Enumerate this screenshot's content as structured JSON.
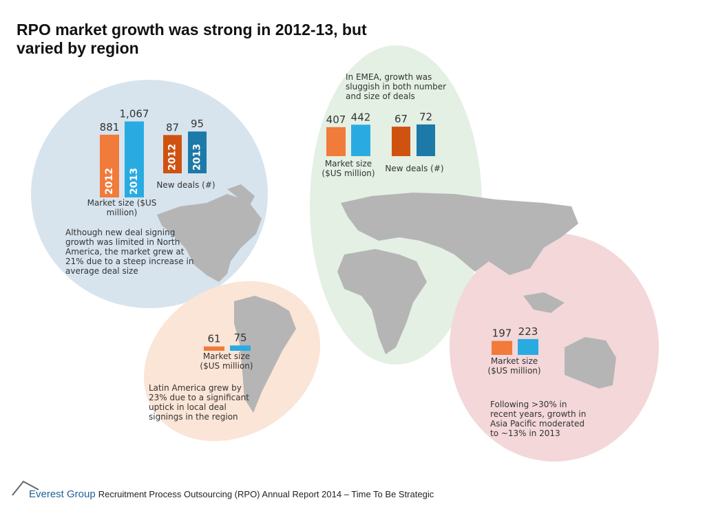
{
  "title": "RPO market growth was strong in 2012-13, but varied by region",
  "notes": [
    "Although new deal signing growth was limited in North America, the market grew at 21% due to a steep increase in average deal size",
    "In EMEA, growth was sluggish in both number and size of deals",
    "Latin America grew by 23% due to a significant uptick in local deal signings in the region",
    "Following >30% in recent years, growth in Asia Pacific moderated to ~13% in 2013"
  ],
  "footer": {
    "brand": "Everest Group",
    "text": "Recruitment Process Outsourcing (RPO) Annual Report 2014 – Time To Be Strategic"
  },
  "chart_data": [
    {
      "type": "bar",
      "caption": "Market size ($US million)",
      "categories": [
        "2012",
        "2013"
      ],
      "values": [
        881,
        1067
      ],
      "value_labels": [
        "881",
        "1,067"
      ],
      "colors": [
        "#f07b3b",
        "#29abe2"
      ]
    },
    {
      "type": "bar",
      "caption": "New deals (#)",
      "categories": [
        "2012",
        "2013"
      ],
      "values": [
        87,
        95
      ],
      "colors": [
        "#cf5211",
        "#1c79a8"
      ]
    },
    {
      "type": "bar",
      "caption": "Market size ($US million)",
      "values": [
        407,
        442
      ],
      "colors": [
        "#f07b3b",
        "#29abe2"
      ]
    },
    {
      "type": "bar",
      "caption": "New deals (#)",
      "values": [
        67,
        72
      ],
      "colors": [
        "#cf5211",
        "#1c79a8"
      ]
    },
    {
      "type": "bar",
      "caption": "Market size ($US million)",
      "values": [
        61,
        75
      ],
      "colors": [
        "#f07b3b",
        "#29abe2"
      ]
    },
    {
      "type": "bar",
      "caption": "Market size ($US million)",
      "values": [
        197,
        223
      ],
      "colors": [
        "#f07b3b",
        "#29abe2"
      ]
    }
  ]
}
